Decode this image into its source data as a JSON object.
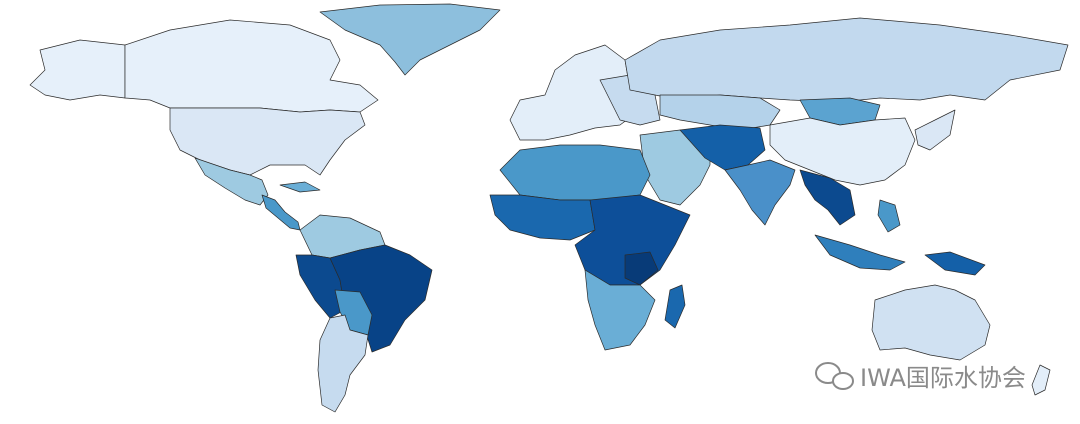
{
  "watermark": "IWA国际水协会"
}
